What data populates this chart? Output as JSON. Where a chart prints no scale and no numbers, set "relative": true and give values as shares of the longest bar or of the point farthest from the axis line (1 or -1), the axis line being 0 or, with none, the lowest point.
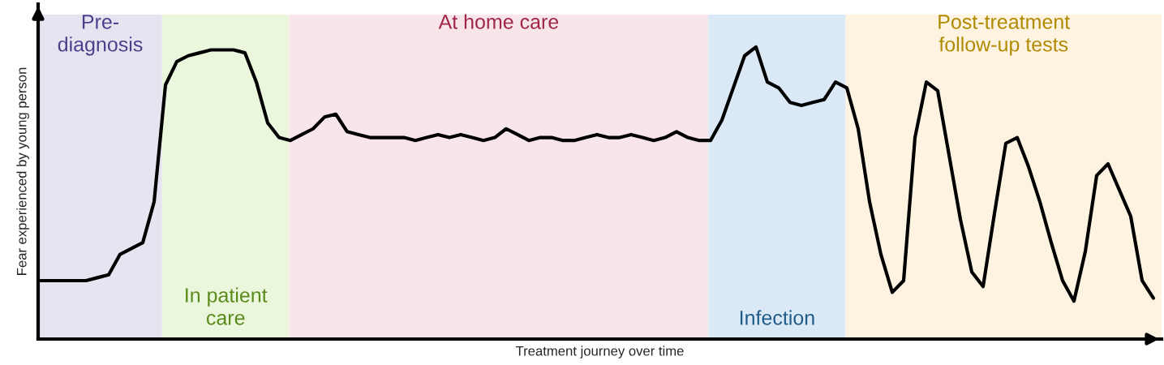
{
  "chart_data": {
    "type": "line",
    "relative": true,
    "xlabel": "Treatment journey over time",
    "ylabel": "Fear experienced by young person",
    "categories": [
      null,
      null,
      null,
      null,
      null,
      null,
      null,
      null,
      null,
      null,
      null,
      null,
      null,
      null,
      null,
      null,
      null,
      null,
      null,
      null,
      null,
      null,
      null,
      null,
      null,
      null,
      null,
      null,
      null,
      null,
      null,
      null,
      null,
      null,
      null,
      null,
      null,
      null,
      null,
      null,
      null,
      null,
      null,
      null,
      null,
      null,
      null,
      null,
      null,
      null,
      null,
      null,
      null,
      null,
      null,
      null,
      null,
      null,
      null,
      null,
      null,
      null,
      null,
      null,
      null,
      null,
      null,
      null,
      null,
      null,
      null,
      null,
      null,
      null,
      null,
      null,
      null,
      null,
      null,
      null,
      null,
      null,
      null,
      null,
      null,
      null,
      null,
      null,
      null,
      null,
      null,
      null,
      null,
      null,
      null,
      null,
      null,
      null,
      null
    ],
    "series": [
      {
        "color": "#000000",
        "values": [
          0.2,
          0.2,
          0.2,
          0.2,
          0.2,
          0.21,
          0.22,
          0.29,
          0.31,
          0.33,
          0.47,
          0.87,
          0.95,
          0.97,
          0.98,
          0.99,
          0.99,
          0.99,
          0.98,
          0.88,
          0.74,
          0.69,
          0.68,
          0.7,
          0.72,
          0.76,
          0.77,
          0.71,
          0.7,
          0.69,
          0.69,
          0.69,
          0.69,
          0.68,
          0.69,
          0.7,
          0.69,
          0.7,
          0.69,
          0.68,
          0.69,
          0.72,
          0.7,
          0.68,
          0.69,
          0.69,
          0.68,
          0.68,
          0.69,
          0.7,
          0.69,
          0.69,
          0.7,
          0.69,
          0.68,
          0.69,
          0.71,
          0.69,
          0.68,
          0.68,
          0.75,
          0.86,
          0.97,
          1.0,
          0.88,
          0.86,
          0.81,
          0.8,
          0.81,
          0.82,
          0.88,
          0.86,
          0.72,
          0.47,
          0.29,
          0.16,
          0.2,
          0.69,
          0.88,
          0.85,
          0.63,
          0.41,
          0.23,
          0.18,
          0.43,
          0.67,
          0.69,
          0.59,
          0.47,
          0.33,
          0.2,
          0.13,
          0.3,
          0.56,
          0.6,
          0.51,
          0.42,
          0.2,
          0.14
        ]
      }
    ],
    "annotations": [
      "Pre-\ndiagnosis",
      "In patient\ncare",
      "At home care",
      "Infection",
      "Post-treatment\nfollow-up tests"
    ],
    "line_style": "solid",
    "marker": "none",
    "legend": false
  }
}
